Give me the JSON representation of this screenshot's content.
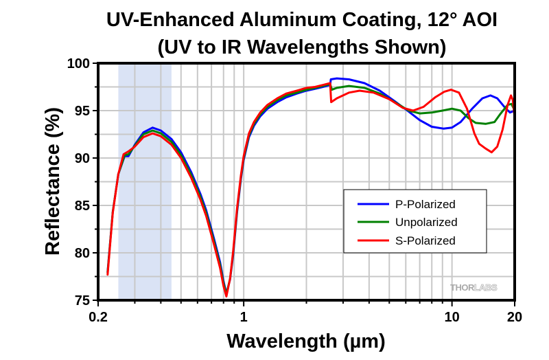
{
  "chart_data": {
    "type": "line",
    "title": [
      "UV-Enhanced Aluminum Coating, 12° AOI",
      "(UV to IR Wavelengths Shown)"
    ],
    "xlabel": "Wavelength (µm)",
    "ylabel": "Reflectance (%)",
    "xscale": "log",
    "xlim": [
      0.2,
      20
    ],
    "ylim": [
      75,
      100
    ],
    "xticks": [
      {
        "value": 0.2,
        "label": "0.2"
      },
      {
        "value": 1,
        "label": "1"
      },
      {
        "value": 10,
        "label": "10"
      },
      {
        "value": 20,
        "label": "20"
      }
    ],
    "x_minor_gridlines": [
      0.3,
      0.4,
      0.5,
      0.6,
      0.7,
      0.8,
      0.9,
      2,
      3,
      4,
      5,
      6,
      7,
      8,
      9
    ],
    "yticks": [
      {
        "value": 75,
        "label": "75"
      },
      {
        "value": 80,
        "label": "80"
      },
      {
        "value": 85,
        "label": "85"
      },
      {
        "value": 90,
        "label": "90"
      },
      {
        "value": 95,
        "label": "95"
      },
      {
        "value": 100,
        "label": "100"
      }
    ],
    "y_minor_gridlines": [
      77.5,
      80,
      82.5,
      85,
      87.5,
      90,
      92.5,
      95,
      97.5
    ],
    "grid": true,
    "shaded_region": {
      "x_start": 0.25,
      "x_end": 0.45,
      "color": "#dae3f5"
    },
    "legend": {
      "position": "center-right",
      "entries": [
        "P-Polarized",
        "Unpolarized",
        "S-Polarized"
      ]
    },
    "watermark": {
      "text_dark": "THOR",
      "text_light": "LABS"
    },
    "series": [
      {
        "name": "P-Polarized",
        "color": "#0000ff",
        "points": [
          [
            0.222,
            78.0
          ],
          [
            0.235,
            84.3
          ],
          [
            0.25,
            88.3
          ],
          [
            0.268,
            90.2
          ],
          [
            0.28,
            90.2
          ],
          [
            0.3,
            91.4
          ],
          [
            0.33,
            92.7
          ],
          [
            0.365,
            93.2
          ],
          [
            0.4,
            92.9
          ],
          [
            0.45,
            92.0
          ],
          [
            0.5,
            90.6
          ],
          [
            0.56,
            88.5
          ],
          [
            0.62,
            86.2
          ],
          [
            0.66,
            84.5
          ],
          [
            0.72,
            81.5
          ],
          [
            0.77,
            79.0
          ],
          [
            0.8,
            77.0
          ],
          [
            0.826,
            75.7
          ],
          [
            0.86,
            77.2
          ],
          [
            0.89,
            79.8
          ],
          [
            0.93,
            84.4
          ],
          [
            0.97,
            87.8
          ],
          [
            1.0,
            89.8
          ],
          [
            1.06,
            92.2
          ],
          [
            1.12,
            93.4
          ],
          [
            1.2,
            94.4
          ],
          [
            1.3,
            95.2
          ],
          [
            1.45,
            95.9
          ],
          [
            1.6,
            96.4
          ],
          [
            1.8,
            96.8
          ],
          [
            2.0,
            97.1
          ],
          [
            2.2,
            97.3
          ],
          [
            2.4,
            97.5
          ],
          [
            2.6,
            97.7
          ],
          [
            2.62,
            98.3
          ],
          [
            2.8,
            98.4
          ],
          [
            3.2,
            98.3
          ],
          [
            3.8,
            97.9
          ],
          [
            4.5,
            97.1
          ],
          [
            5.3,
            96.0
          ],
          [
            6.2,
            94.9
          ],
          [
            7.0,
            94.0
          ],
          [
            8.0,
            93.3
          ],
          [
            9.1,
            93.1
          ],
          [
            10.0,
            93.2
          ],
          [
            11.0,
            93.8
          ],
          [
            12.5,
            95.2
          ],
          [
            14.0,
            96.3
          ],
          [
            15.3,
            96.6
          ],
          [
            16.5,
            96.3
          ],
          [
            18.0,
            95.3
          ],
          [
            19.0,
            94.8
          ],
          [
            20.0,
            95.0
          ]
        ]
      },
      {
        "name": "Unpolarized",
        "color": "#008000",
        "points": [
          [
            0.222,
            77.9
          ],
          [
            0.235,
            84.3
          ],
          [
            0.25,
            88.3
          ],
          [
            0.268,
            90.3
          ],
          [
            0.28,
            90.4
          ],
          [
            0.3,
            91.3
          ],
          [
            0.33,
            92.5
          ],
          [
            0.365,
            92.9
          ],
          [
            0.4,
            92.6
          ],
          [
            0.45,
            91.7
          ],
          [
            0.5,
            90.3
          ],
          [
            0.56,
            88.2
          ],
          [
            0.62,
            85.9
          ],
          [
            0.66,
            84.2
          ],
          [
            0.72,
            81.2
          ],
          [
            0.77,
            78.7
          ],
          [
            0.8,
            76.8
          ],
          [
            0.826,
            75.6
          ],
          [
            0.86,
            77.3
          ],
          [
            0.89,
            80.0
          ],
          [
            0.93,
            84.6
          ],
          [
            0.97,
            88.0
          ],
          [
            1.0,
            90.0
          ],
          [
            1.06,
            92.4
          ],
          [
            1.12,
            93.6
          ],
          [
            1.2,
            94.6
          ],
          [
            1.3,
            95.4
          ],
          [
            1.45,
            96.1
          ],
          [
            1.6,
            96.6
          ],
          [
            1.8,
            96.9
          ],
          [
            2.0,
            97.2
          ],
          [
            2.2,
            97.4
          ],
          [
            2.4,
            97.6
          ],
          [
            2.6,
            97.8
          ],
          [
            2.65,
            97.2
          ],
          [
            2.8,
            97.4
          ],
          [
            3.2,
            97.6
          ],
          [
            3.8,
            97.4
          ],
          [
            4.5,
            96.8
          ],
          [
            5.3,
            95.9
          ],
          [
            6.2,
            95.0
          ],
          [
            7.0,
            94.7
          ],
          [
            8.0,
            94.8
          ],
          [
            9.0,
            95.0
          ],
          [
            10.0,
            95.2
          ],
          [
            11.0,
            95.0
          ],
          [
            12.0,
            94.2
          ],
          [
            13.0,
            93.7
          ],
          [
            14.5,
            93.6
          ],
          [
            16.0,
            93.8
          ],
          [
            17.0,
            94.6
          ],
          [
            18.5,
            95.6
          ],
          [
            19.3,
            95.7
          ],
          [
            20.0,
            95.0
          ]
        ]
      },
      {
        "name": "S-Polarized",
        "color": "#ff0000",
        "points": [
          [
            0.222,
            77.7
          ],
          [
            0.235,
            84.2
          ],
          [
            0.25,
            88.3
          ],
          [
            0.265,
            90.4
          ],
          [
            0.28,
            90.7
          ],
          [
            0.3,
            91.2
          ],
          [
            0.33,
            92.2
          ],
          [
            0.365,
            92.6
          ],
          [
            0.4,
            92.3
          ],
          [
            0.45,
            91.4
          ],
          [
            0.5,
            90.0
          ],
          [
            0.56,
            87.9
          ],
          [
            0.62,
            85.6
          ],
          [
            0.66,
            83.9
          ],
          [
            0.72,
            80.9
          ],
          [
            0.77,
            78.4
          ],
          [
            0.8,
            76.5
          ],
          [
            0.826,
            75.4
          ],
          [
            0.86,
            77.3
          ],
          [
            0.89,
            80.2
          ],
          [
            0.93,
            84.8
          ],
          [
            0.97,
            88.2
          ],
          [
            1.0,
            90.2
          ],
          [
            1.06,
            92.6
          ],
          [
            1.12,
            93.8
          ],
          [
            1.2,
            94.8
          ],
          [
            1.3,
            95.6
          ],
          [
            1.45,
            96.3
          ],
          [
            1.6,
            96.8
          ],
          [
            1.8,
            97.1
          ],
          [
            2.0,
            97.4
          ],
          [
            2.2,
            97.5
          ],
          [
            2.4,
            97.7
          ],
          [
            2.6,
            97.9
          ],
          [
            2.63,
            95.9
          ],
          [
            2.8,
            96.3
          ],
          [
            3.2,
            96.9
          ],
          [
            3.6,
            97.1
          ],
          [
            4.2,
            96.9
          ],
          [
            5.0,
            96.2
          ],
          [
            5.8,
            95.3
          ],
          [
            6.5,
            95.0
          ],
          [
            7.3,
            95.4
          ],
          [
            8.3,
            96.4
          ],
          [
            9.2,
            97.0
          ],
          [
            9.9,
            97.2
          ],
          [
            10.8,
            96.9
          ],
          [
            11.8,
            95.2
          ],
          [
            12.8,
            92.6
          ],
          [
            13.5,
            91.5
          ],
          [
            14.5,
            91.0
          ],
          [
            15.5,
            90.6
          ],
          [
            16.5,
            91.2
          ],
          [
            17.5,
            93.0
          ],
          [
            18.5,
            95.6
          ],
          [
            19.2,
            96.6
          ],
          [
            19.6,
            96.1
          ],
          [
            20.0,
            94.2
          ]
        ]
      }
    ]
  }
}
